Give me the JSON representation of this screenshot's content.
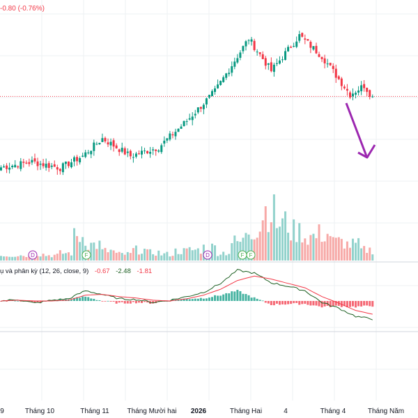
{
  "header": {
    "change_text": "-0.80 (-0.76%)"
  },
  "macd": {
    "title": "ụ và phân kỳ (12, 26, close, 9)",
    "hist_value": "-0.67",
    "macd_value": "-2.48",
    "signal_value": "-1.81"
  },
  "x_labels": [
    {
      "text": "9",
      "bold": false
    },
    {
      "text": "Tháng 10",
      "bold": false
    },
    {
      "text": "Tháng 11",
      "bold": false
    },
    {
      "text": "Tháng Mười hai",
      "bold": false
    },
    {
      "text": "2026",
      "bold": true
    },
    {
      "text": "Tháng Hai",
      "bold": false
    },
    {
      "text": "4",
      "bold": false
    },
    {
      "text": "Tháng 4",
      "bold": false
    },
    {
      "text": "Tháng Năm",
      "bold": false
    }
  ],
  "event_markers": [
    {
      "label": "D",
      "color": "#9c27b0"
    },
    {
      "label": "F",
      "color": "#4caf50"
    },
    {
      "label": "D",
      "color": "#9c27b0"
    },
    {
      "label": "F",
      "color": "#4caf50"
    },
    {
      "label": "F",
      "color": "#4caf50"
    }
  ],
  "colors": {
    "up": "#089981",
    "down": "#f23645",
    "up_volume": "#92d2cc",
    "down_volume": "#f7a9a7",
    "macd_line": "#1b5e20",
    "signal_line": "#f23645",
    "arrow": "#9c27b0",
    "grid": "#eef0f3"
  },
  "chart_data": {
    "type": "candlestick",
    "title": "",
    "xlabel": "",
    "ylabel": "",
    "grid": true,
    "current_price_line": true,
    "price_segments": [
      {
        "n": 12,
        "start": 100,
        "end": 102
      },
      {
        "n": 10,
        "start": 102,
        "end": 100
      },
      {
        "n": 8,
        "start": 100,
        "end": 104
      },
      {
        "n": 7,
        "start": 104,
        "end": 110
      },
      {
        "n": 10,
        "start": 110,
        "end": 104
      },
      {
        "n": 10,
        "start": 104,
        "end": 107
      },
      {
        "n": 10,
        "start": 107,
        "end": 116
      },
      {
        "n": 10,
        "start": 116,
        "end": 126
      },
      {
        "n": 12,
        "start": 126,
        "end": 144
      },
      {
        "n": 8,
        "start": 144,
        "end": 133
      },
      {
        "n": 10,
        "start": 133,
        "end": 145
      },
      {
        "n": 8,
        "start": 145,
        "end": 138
      },
      {
        "n": 10,
        "start": 138,
        "end": 125
      },
      {
        "n": 5,
        "start": 125,
        "end": 128
      },
      {
        "n": 3,
        "start": 128,
        "end": 124
      }
    ],
    "volume_level": [
      0.1,
      0.1,
      0.12,
      0.1,
      0.14,
      0.45,
      0.3,
      0.18,
      0.12,
      0.2,
      0.15,
      0.12,
      0.18,
      0.2,
      0.25,
      0.15,
      0.35,
      0.6,
      0.95,
      0.7,
      0.55,
      0.45,
      0.5,
      0.35,
      0.3,
      0.2
    ],
    "macd": {
      "macd_line": [
        0,
        0.2,
        -0.3,
        0.1,
        0.3,
        1.4,
        0.9,
        0.3,
        0.2,
        -0.2,
        0.1,
        0.6,
        1.2,
        2.4,
        4.2,
        3.8,
        2.5,
        2.0,
        1.4,
        -0.2,
        -1.0,
        -2.1,
        -2.48
      ],
      "signal_line": [
        0,
        0.1,
        0,
        0,
        0.1,
        0.8,
        0.9,
        0.6,
        0.4,
        0.1,
        0,
        0.3,
        0.8,
        1.6,
        2.8,
        3.4,
        3.0,
        2.4,
        1.8,
        0.6,
        -0.3,
        -1.3,
        -1.81
      ]
    }
  }
}
